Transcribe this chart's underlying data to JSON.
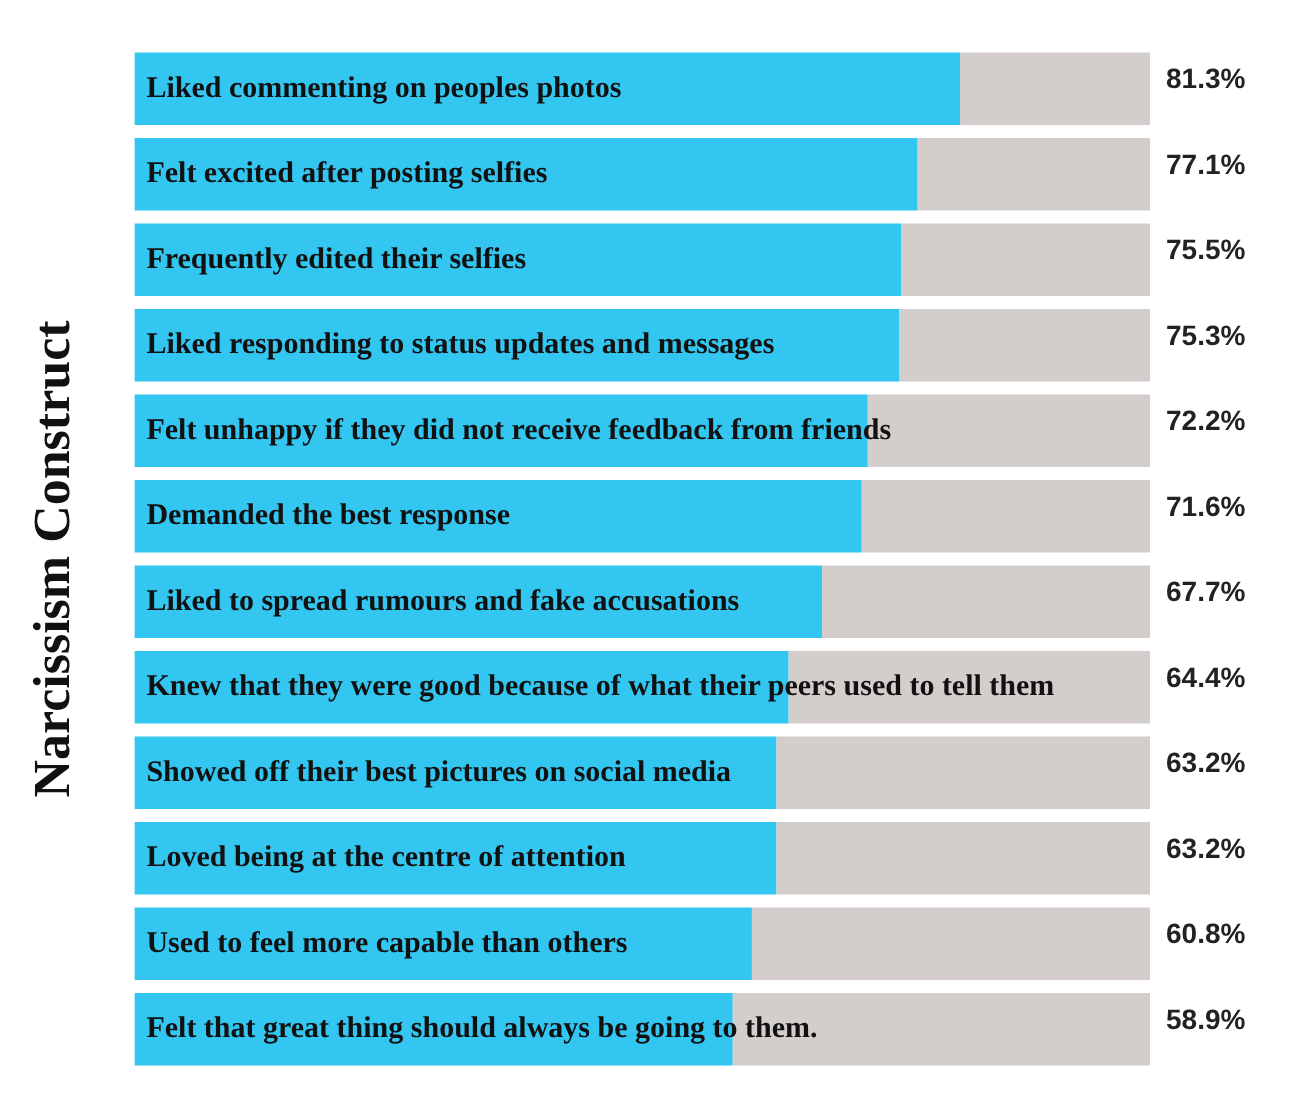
{
  "chart_data": {
    "type": "bar",
    "orientation": "horizontal",
    "stacked": true,
    "ylabel": "Narcissism Construct",
    "categories": [
      "Liked commenting on peoples photos",
      "Felt excited after posting selfies",
      "Frequently edited their selfies",
      "Liked responding to status updates and messages",
      "Felt unhappy if they did not receive feedback from friends",
      "Demanded the best response",
      "Liked to spread rumours and fake accusations",
      "Knew that they were good because of what their peers used to tell them",
      "Showed off their best pictures on social media",
      "Loved being at the centre of attention",
      "Used to feel more capable than others",
      "Felt that great thing should always be going to them."
    ],
    "series": [
      {
        "color": "#33c6f0",
        "values": [
          81.3,
          77.1,
          75.5,
          75.3,
          72.2,
          71.6,
          67.7,
          64.4,
          63.2,
          63.2,
          60.8,
          58.9
        ],
        "value_labels": [
          "81.3%",
          "77.1%",
          "75.5%",
          "75.3%",
          "72.2%",
          "71.6%",
          "67.7%",
          "64.4%",
          "63.2%",
          "63.2%",
          "60.8%",
          "58.9%"
        ]
      },
      {
        "color": "#d3cdcc",
        "values": [
          18.7,
          22.9,
          24.5,
          24.7,
          27.8,
          28.4,
          32.3,
          35.6,
          36.8,
          36.8,
          39.2,
          41.1
        ]
      }
    ],
    "xlim": [
      0,
      100
    ],
    "grid": false,
    "legend": false,
    "tick_labels": "y"
  }
}
